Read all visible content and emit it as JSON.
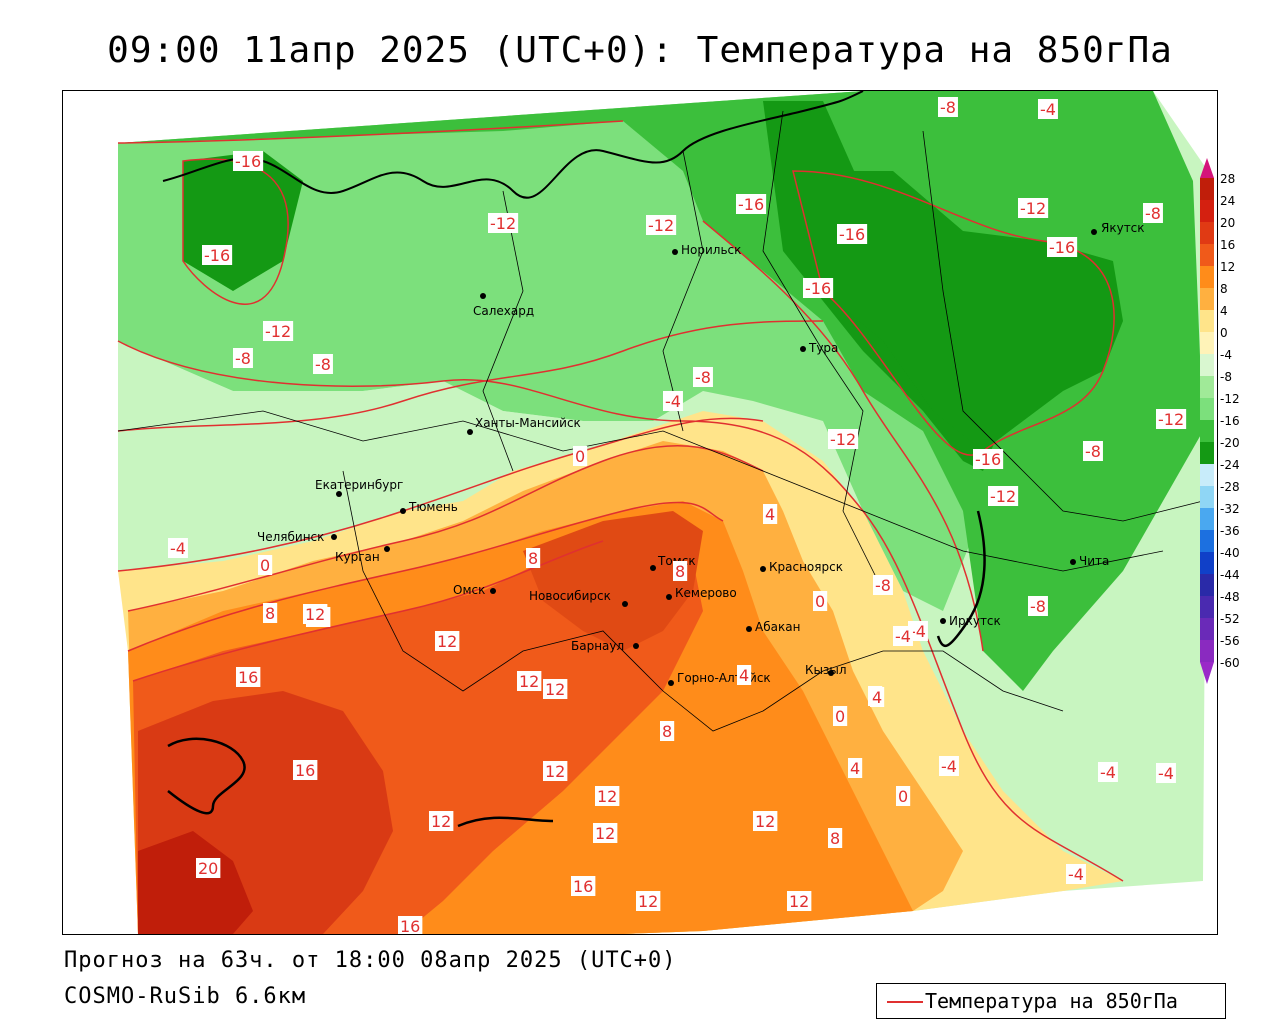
{
  "title": "09:00 11апр 2025 (UTC+0): Температура на 850гПа",
  "footer": {
    "forecast": "Прогноз на 63ч. от 18:00 08апр 2025 (UTC+0)",
    "model": "COSMO-RuSib 6.6км"
  },
  "legend": {
    "label": "Температура на 850гПа",
    "line_color": "#e03030"
  },
  "colorbar": {
    "values": [
      "28",
      "24",
      "20",
      "16",
      "12",
      "8",
      "4",
      "0",
      "-4",
      "-8",
      "-12",
      "-16",
      "-20",
      "-24",
      "-28",
      "-32",
      "-36",
      "-40",
      "-44",
      "-48",
      "-52",
      "-56",
      "-60"
    ]
  },
  "cities": [
    "Якутск",
    "Норильск",
    "Салехард",
    "Тура",
    "Ханты-Мансийск",
    "Екатеринбург",
    "Тюмень",
    "Челябинск",
    "Курган",
    "Омск",
    "Новосибирск",
    "Томск",
    "Кемерово",
    "Красноярск",
    "Барнаул",
    "Абакан",
    "Горно-Алтайск",
    "Кызыл",
    "Иркутск",
    "Чита"
  ],
  "isotherm_labels": [
    "-16",
    "-16",
    "-12",
    "-12",
    "-8",
    "-8",
    "-8",
    "-4",
    "-8",
    "-16",
    "-12",
    "-8",
    "-16",
    "-16",
    "-16",
    "-12",
    "-4",
    "-12",
    "-16",
    "-12",
    "-8",
    "-12",
    "-4",
    "0",
    "-4",
    "4",
    "0",
    "0",
    "4",
    "8",
    "8",
    "-8",
    "-4",
    "0",
    "4",
    "8",
    "12",
    "12",
    "16",
    "16",
    "20",
    "16",
    "12",
    "12",
    "12",
    "12",
    "12",
    "12",
    "16",
    "12",
    "12",
    "12",
    "8",
    "8",
    "4",
    "4",
    "0",
    "-4",
    "-4",
    "-4",
    "-4",
    "-8",
    "-8",
    "12"
  ],
  "colors": {
    "isotherm": "#e03030",
    "dark_green": "#149914",
    "green": "#3cbf3c",
    "light_green": "#7ce07c",
    "pale_green": "#c8f5c0",
    "yellow": "#ffe48a",
    "orange_light": "#ffb040",
    "orange": "#ff8c1a",
    "red_orange": "#f05a1a",
    "red": "#d93a14",
    "dark_red": "#c01e0a"
  }
}
